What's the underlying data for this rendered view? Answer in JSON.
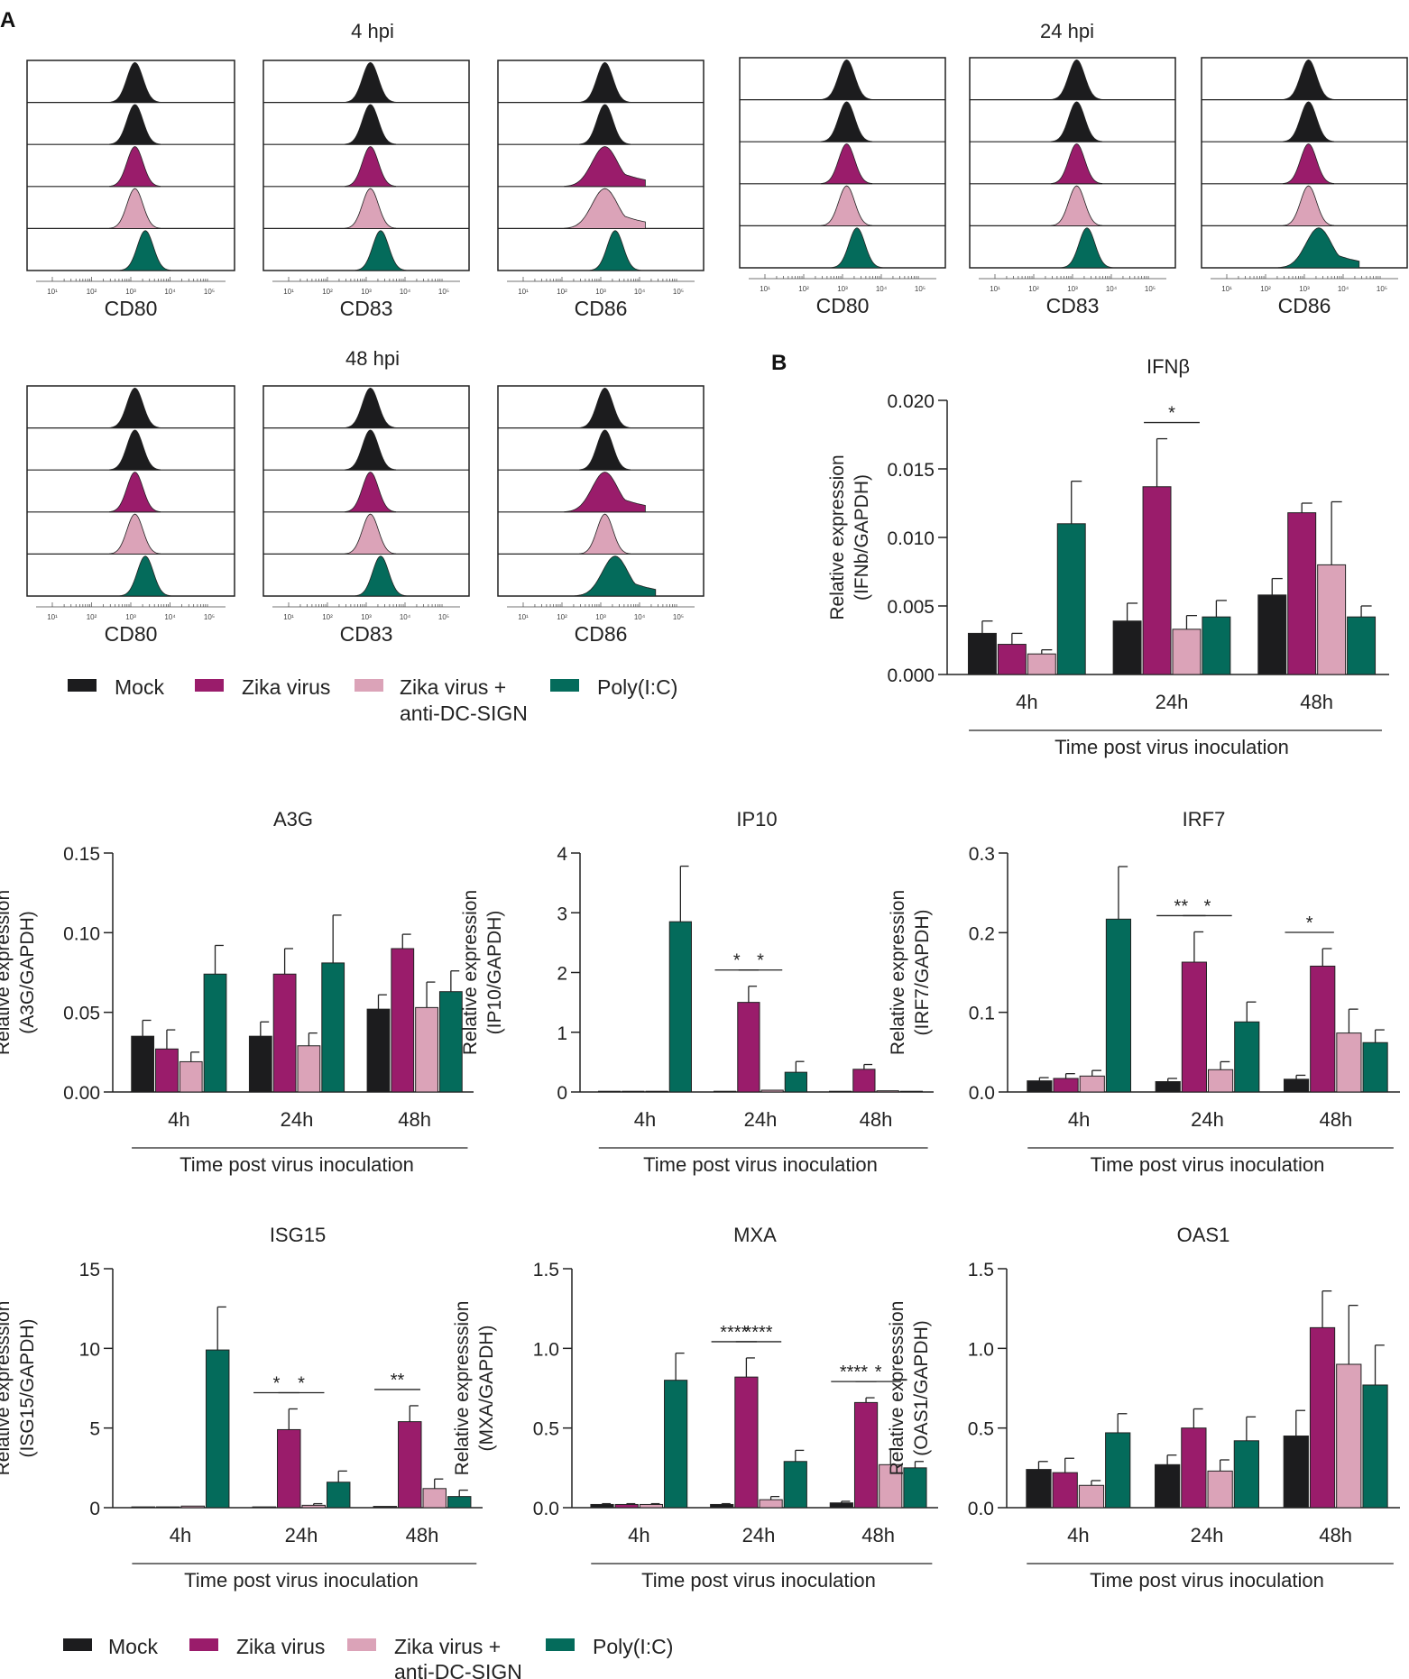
{
  "panels": {
    "A": "A",
    "B": "B"
  },
  "colors": {
    "mock": "#1c1c1e",
    "zika": "#9a1c6b",
    "zika_anti": "#dba3b8",
    "polyic": "#046b5b",
    "axis": "#222222"
  },
  "flow": {
    "groups": [
      {
        "label": "4 hpi"
      },
      {
        "label": "24 hpi"
      },
      {
        "label": "48 hpi"
      }
    ],
    "markers": [
      "CD80",
      "CD83",
      "CD86"
    ],
    "tick_labels": [
      "10¹",
      "10²",
      "10³",
      "10⁴",
      "10⁵"
    ]
  },
  "legend": {
    "items": [
      "Mock",
      "Zika virus",
      "Zika virus +",
      "Poly(I:C)"
    ],
    "item3_line2": "anti-DC-SIGN"
  },
  "chart_data": [
    {
      "id": "ifnb",
      "type": "bar",
      "title": "IFNβ",
      "ylabel_line1": "Relative expression",
      "ylabel_line2": "(IFNb/GAPDH)",
      "xlabel": "Time post virus inoculation",
      "categories": [
        "4h",
        "24h",
        "48h"
      ],
      "ylim": [
        0,
        0.02
      ],
      "yticks": [
        0,
        0.005,
        0.01,
        0.015,
        0.02
      ],
      "ytick_labels": [
        "0.000",
        "0.005",
        "0.010",
        "0.015",
        "0.020"
      ],
      "series": [
        {
          "name": "Mock",
          "values": [
            0.003,
            0.0039,
            0.0058
          ],
          "errors": [
            0.0009,
            0.0013,
            0.0012
          ]
        },
        {
          "name": "Zika virus",
          "values": [
            0.0022,
            0.0137,
            0.0118
          ],
          "errors": [
            0.0008,
            0.0035,
            0.0007
          ]
        },
        {
          "name": "Zika virus + anti-DC-SIGN",
          "values": [
            0.0015,
            0.0033,
            0.008
          ],
          "errors": [
            0.0003,
            0.001,
            0.0046
          ]
        },
        {
          "name": "Poly(I:C)",
          "values": [
            0.011,
            0.0042,
            0.0042
          ],
          "errors": [
            0.0031,
            0.0012,
            0.0008
          ]
        }
      ],
      "significance": [
        {
          "group": 1,
          "from": 1,
          "to": 2,
          "label": "*"
        }
      ]
    },
    {
      "id": "a3g",
      "type": "bar",
      "title": "A3G",
      "ylabel_line1": "Relative expression",
      "ylabel_line2": "(A3G/GAPDH)",
      "xlabel": "Time post virus inoculation",
      "categories": [
        "4h",
        "24h",
        "48h"
      ],
      "ylim": [
        0,
        0.15
      ],
      "yticks": [
        0,
        0.05,
        0.1,
        0.15
      ],
      "ytick_labels": [
        "0.00",
        "0.05",
        "0.10",
        "0.15"
      ],
      "series": [
        {
          "name": "Mock",
          "values": [
            0.035,
            0.035,
            0.052
          ],
          "errors": [
            0.01,
            0.009,
            0.009
          ]
        },
        {
          "name": "Zika virus",
          "values": [
            0.027,
            0.074,
            0.09
          ],
          "errors": [
            0.012,
            0.016,
            0.009
          ]
        },
        {
          "name": "Zika virus + anti-DC-SIGN",
          "values": [
            0.019,
            0.029,
            0.053
          ],
          "errors": [
            0.006,
            0.008,
            0.016
          ]
        },
        {
          "name": "Poly(I:C)",
          "values": [
            0.074,
            0.081,
            0.063
          ],
          "errors": [
            0.018,
            0.03,
            0.013
          ]
        }
      ],
      "significance": []
    },
    {
      "id": "ip10",
      "type": "bar",
      "title": "IP10",
      "ylabel_line1": "Relative expression",
      "ylabel_line2": "(IP10/GAPDH)",
      "xlabel": "Time post virus inoculation",
      "categories": [
        "4h",
        "24h",
        "48h"
      ],
      "ylim": [
        0,
        4
      ],
      "yticks": [
        0,
        1,
        2,
        3,
        4
      ],
      "ytick_labels": [
        "0",
        "1",
        "2",
        "3",
        "4"
      ],
      "series": [
        {
          "name": "Mock",
          "values": [
            0.0,
            0.0,
            0.0
          ],
          "errors": [
            0,
            0,
            0
          ]
        },
        {
          "name": "Zika virus",
          "values": [
            0.0,
            1.5,
            0.38
          ],
          "errors": [
            0,
            0.27,
            0.08
          ]
        },
        {
          "name": "Zika virus + anti-DC-SIGN",
          "values": [
            0.01,
            0.03,
            0.02
          ],
          "errors": [
            0,
            0,
            0
          ]
        },
        {
          "name": "Poly(I:C)",
          "values": [
            2.85,
            0.33,
            0.01
          ],
          "errors": [
            0.93,
            0.18,
            0
          ]
        }
      ],
      "significance": [
        {
          "group": 1,
          "from": 0,
          "to": 1,
          "label": "*"
        },
        {
          "group": 1,
          "from": 1,
          "to": 2,
          "label": "*"
        }
      ]
    },
    {
      "id": "irf7",
      "type": "bar",
      "title": "IRF7",
      "ylabel_line1": "Relative expression",
      "ylabel_line2": "(IRF7/GAPDH)",
      "xlabel": "Time post virus inoculation",
      "categories": [
        "4h",
        "24h",
        "48h"
      ],
      "ylim": [
        0,
        0.3
      ],
      "yticks": [
        0,
        0.1,
        0.2,
        0.3
      ],
      "ytick_labels": [
        "0.0",
        "0.1",
        "0.2",
        "0.3"
      ],
      "series": [
        {
          "name": "Mock",
          "values": [
            0.014,
            0.013,
            0.016
          ],
          "errors": [
            0.004,
            0.004,
            0.005
          ]
        },
        {
          "name": "Zika virus",
          "values": [
            0.017,
            0.163,
            0.158
          ],
          "errors": [
            0.006,
            0.038,
            0.022
          ]
        },
        {
          "name": "Zika virus + anti-DC-SIGN",
          "values": [
            0.02,
            0.028,
            0.074
          ],
          "errors": [
            0.007,
            0.01,
            0.03
          ]
        },
        {
          "name": "Poly(I:C)",
          "values": [
            0.217,
            0.088,
            0.062
          ],
          "errors": [
            0.066,
            0.025,
            0.016
          ]
        }
      ],
      "significance": [
        {
          "group": 1,
          "from": 0,
          "to": 1,
          "label": "**"
        },
        {
          "group": 1,
          "from": 1,
          "to": 2,
          "label": "*"
        },
        {
          "group": 2,
          "from": 0,
          "to": 1,
          "label": "*"
        }
      ]
    },
    {
      "id": "isg15",
      "type": "bar",
      "title": "ISG15",
      "ylabel_line1": "Relative expresssion",
      "ylabel_line2": "(ISG15/GAPDH)",
      "xlabel": "Time post virus inoculation",
      "categories": [
        "4h",
        "24h",
        "48h"
      ],
      "ylim": [
        0,
        15
      ],
      "yticks": [
        0,
        5,
        10,
        15
      ],
      "ytick_labels": [
        "0",
        "5",
        "10",
        "15"
      ],
      "series": [
        {
          "name": "Mock",
          "values": [
            0.05,
            0.05,
            0.08
          ],
          "errors": [
            0,
            0,
            0
          ]
        },
        {
          "name": "Zika virus",
          "values": [
            0.05,
            4.9,
            5.4
          ],
          "errors": [
            0,
            1.3,
            1.0
          ]
        },
        {
          "name": "Zika virus + anti-DC-SIGN",
          "values": [
            0.1,
            0.15,
            1.2
          ],
          "errors": [
            0,
            0.1,
            0.6
          ]
        },
        {
          "name": "Poly(I:C)",
          "values": [
            9.9,
            1.6,
            0.7
          ],
          "errors": [
            2.7,
            0.7,
            0.4
          ]
        }
      ],
      "significance": [
        {
          "group": 1,
          "from": 0,
          "to": 1,
          "label": "*"
        },
        {
          "group": 1,
          "from": 1,
          "to": 2,
          "label": "*"
        },
        {
          "group": 2,
          "from": 0,
          "to": 1,
          "label": "**"
        }
      ]
    },
    {
      "id": "mxa",
      "type": "bar",
      "title": "MXA",
      "ylabel_line1": "Relative expresssion",
      "ylabel_line2": "(MXA/GAPDH)",
      "xlabel": "Time post virus inoculation",
      "categories": [
        "4h",
        "24h",
        "48h"
      ],
      "ylim": [
        0,
        1.5
      ],
      "yticks": [
        0,
        0.5,
        1.0,
        1.5
      ],
      "ytick_labels": [
        "0.0",
        "0.5",
        "1.0",
        "1.5"
      ],
      "series": [
        {
          "name": "Mock",
          "values": [
            0.02,
            0.02,
            0.03
          ],
          "errors": [
            0.005,
            0.005,
            0.01
          ]
        },
        {
          "name": "Zika virus",
          "values": [
            0.02,
            0.82,
            0.66
          ],
          "errors": [
            0.005,
            0.12,
            0.03
          ]
        },
        {
          "name": "Zika virus + anti-DC-SIGN",
          "values": [
            0.02,
            0.05,
            0.27
          ],
          "errors": [
            0.005,
            0.02,
            0.1
          ]
        },
        {
          "name": "Poly(I:C)",
          "values": [
            0.8,
            0.29,
            0.25
          ],
          "errors": [
            0.17,
            0.07,
            0.04
          ]
        }
      ],
      "significance": [
        {
          "group": 1,
          "from": 0,
          "to": 1,
          "label": "****"
        },
        {
          "group": 1,
          "from": 1,
          "to": 2,
          "label": "****"
        },
        {
          "group": 2,
          "from": 0,
          "to": 1,
          "label": "****"
        },
        {
          "group": 2,
          "from": 1,
          "to": 2,
          "label": "*"
        }
      ]
    },
    {
      "id": "oas1",
      "type": "bar",
      "title": "OAS1",
      "ylabel_line1": "Relative expresssion",
      "ylabel_line2": "(OAS1/GAPDH)",
      "xlabel": "Time post virus inoculation",
      "categories": [
        "4h",
        "24h",
        "48h"
      ],
      "ylim": [
        0,
        1.5
      ],
      "yticks": [
        0,
        0.5,
        1.0,
        1.5
      ],
      "ytick_labels": [
        "0.0",
        "0.5",
        "1.0",
        "1.5"
      ],
      "series": [
        {
          "name": "Mock",
          "values": [
            0.24,
            0.27,
            0.45
          ],
          "errors": [
            0.05,
            0.06,
            0.16
          ]
        },
        {
          "name": "Zika virus",
          "values": [
            0.22,
            0.5,
            1.13
          ],
          "errors": [
            0.09,
            0.12,
            0.23
          ]
        },
        {
          "name": "Zika virus + anti-DC-SIGN",
          "values": [
            0.14,
            0.23,
            0.9
          ],
          "errors": [
            0.03,
            0.07,
            0.37
          ]
        },
        {
          "name": "Poly(I:C)",
          "values": [
            0.47,
            0.42,
            0.77
          ],
          "errors": [
            0.12,
            0.15,
            0.25
          ]
        }
      ],
      "significance": []
    }
  ]
}
